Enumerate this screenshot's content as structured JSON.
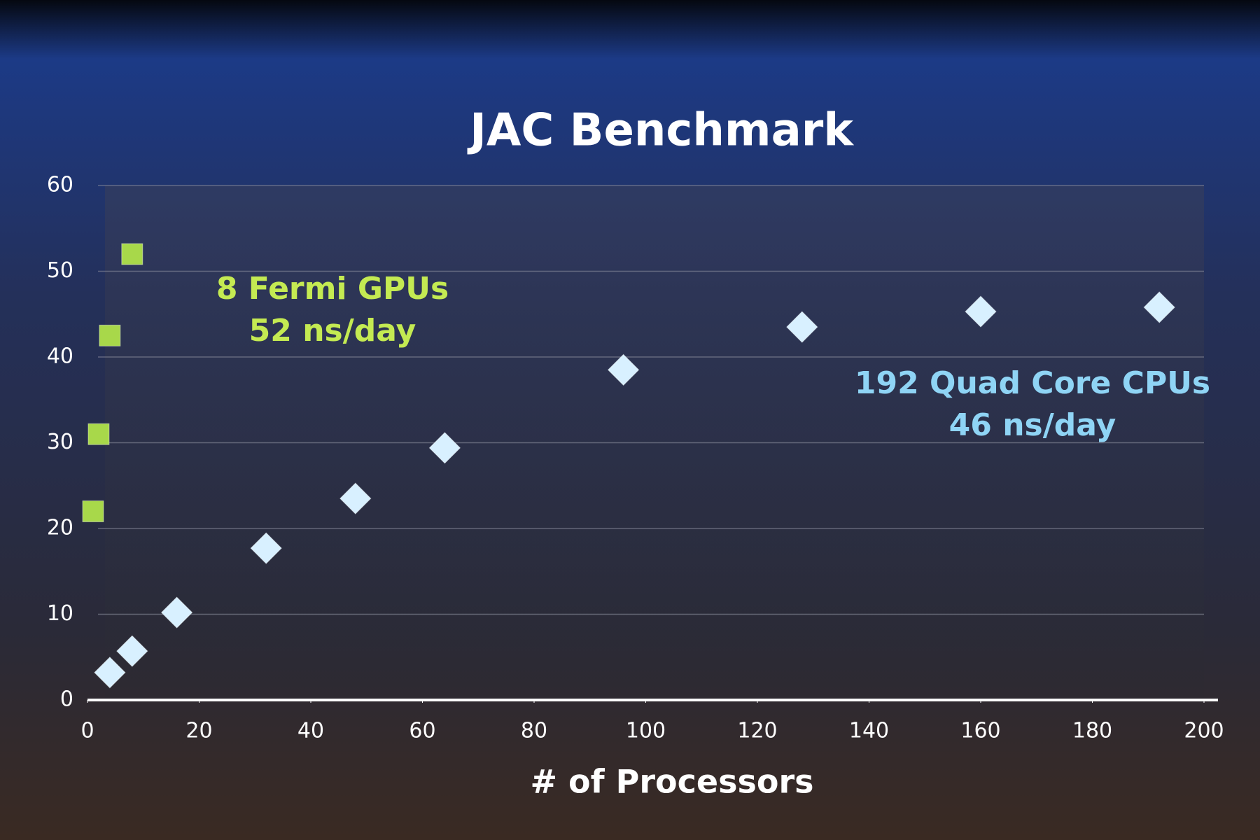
{
  "chart_data": {
    "type": "scatter",
    "title": "JAC Benchmark",
    "x_label": "# of Processors",
    "xlim": [
      0,
      200
    ],
    "xticks": [
      0,
      20,
      40,
      60,
      80,
      100,
      120,
      140,
      160,
      180,
      200
    ],
    "ylim": [
      0,
      60
    ],
    "yticks": [
      0,
      10,
      20,
      30,
      40,
      50,
      60
    ],
    "grid": true,
    "series": [
      {
        "color": "#a8d84a",
        "marker": "square",
        "x": [
          1,
          2,
          4,
          8
        ],
        "values": [
          22,
          31,
          42.5,
          52
        ]
      },
      {
        "color": "#d8f0ff",
        "marker": "diamond",
        "x": [
          4,
          8,
          16,
          32,
          48,
          64,
          96,
          128,
          160,
          192
        ],
        "values": [
          3.2,
          5.7,
          10.2,
          17.7,
          23.5,
          29.4,
          38.5,
          43.5,
          45.3,
          45.8
        ]
      }
    ],
    "annotations": [
      {
        "lines": [
          "8  Fermi GPUs",
          "52 ns/day"
        ],
        "color": "#c4ea52"
      },
      {
        "lines": [
          "192 Quad Core CPUs",
          "46 ns/day"
        ],
        "color": "#8fd4f5"
      }
    ]
  }
}
